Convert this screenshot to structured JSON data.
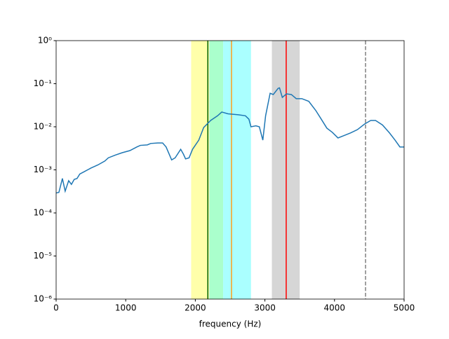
{
  "chart_data": {
    "type": "line",
    "xlabel": "frequency (Hz)",
    "x": [
      0,
      40,
      90,
      130,
      180,
      220,
      260,
      300,
      340,
      400,
      500,
      600,
      700,
      750,
      850,
      950,
      1060,
      1160,
      1210,
      1310,
      1360,
      1460,
      1530,
      1580,
      1660,
      1710,
      1790,
      1830,
      1860,
      1910,
      1960,
      2050,
      2120,
      2220,
      2320,
      2380,
      2470,
      2620,
      2720,
      2770,
      2800,
      2870,
      2920,
      2970,
      3010,
      3075,
      3120,
      3190,
      3210,
      3250,
      3310,
      3380,
      3450,
      3530,
      3630,
      3730,
      3810,
      3890,
      3970,
      4050,
      4130,
      4230,
      4330,
      4430,
      4520,
      4590,
      4690,
      4790,
      4870,
      4940,
      5000
    ],
    "series": [
      {
        "color": "#1f77b4",
        "values": [
          0.00029,
          0.0003,
          0.00063,
          0.00032,
          0.00056,
          0.00046,
          0.0006,
          0.00063,
          0.0008,
          0.0009,
          0.0011,
          0.0013,
          0.0016,
          0.0019,
          0.0022,
          0.0025,
          0.0028,
          0.0034,
          0.0037,
          0.0038,
          0.0041,
          0.0042,
          0.0042,
          0.0034,
          0.0017,
          0.0019,
          0.003,
          0.0023,
          0.0018,
          0.0019,
          0.003,
          0.0049,
          0.0096,
          0.014,
          0.018,
          0.022,
          0.02,
          0.019,
          0.018,
          0.015,
          0.01,
          0.0105,
          0.01,
          0.0049,
          0.018,
          0.06,
          0.056,
          0.078,
          0.08,
          0.048,
          0.058,
          0.056,
          0.045,
          0.045,
          0.039,
          0.024,
          0.015,
          0.0093,
          0.0074,
          0.0055,
          0.0062,
          0.0072,
          0.0086,
          0.0115,
          0.014,
          0.014,
          0.011,
          0.0072,
          0.0049,
          0.0034,
          0.0034
        ]
      }
    ],
    "spans": [
      {
        "xmin": 1940,
        "xmax": 2200,
        "color": "#ffffaa"
      },
      {
        "xmin": 2200,
        "xmax": 2400,
        "color": "#aaffcc"
      },
      {
        "xmin": 2400,
        "xmax": 2800,
        "color": "#aaffff"
      },
      {
        "xmin": 3100,
        "xmax": 3500,
        "color": "#d6d6d6"
      }
    ],
    "vlines": [
      {
        "x": 2180,
        "color": "#006400",
        "dashed": false
      },
      {
        "x": 2520,
        "color": "#ff9f1a",
        "dashed": false
      },
      {
        "x": 3306,
        "color": "#ff0000",
        "dashed": false
      },
      {
        "x": 4446,
        "color": "#808080",
        "dashed": true
      }
    ],
    "xlim": [
      0,
      5000
    ],
    "xticks": [
      0,
      1000,
      2000,
      3000,
      4000,
      5000
    ],
    "ylim": [
      1e-06,
      1
    ],
    "log_y": true,
    "yticks": [
      {
        "value": 1e-06,
        "label": "10⁻⁶"
      },
      {
        "value": 1e-05,
        "label": "10⁻⁵"
      },
      {
        "value": 0.0001,
        "label": "10⁻⁴"
      },
      {
        "value": 0.001,
        "label": "10⁻³"
      },
      {
        "value": 0.01,
        "label": "10⁻²"
      },
      {
        "value": 0.1,
        "label": "10⁻¹"
      },
      {
        "value": 1,
        "label": "10⁰"
      }
    ]
  }
}
